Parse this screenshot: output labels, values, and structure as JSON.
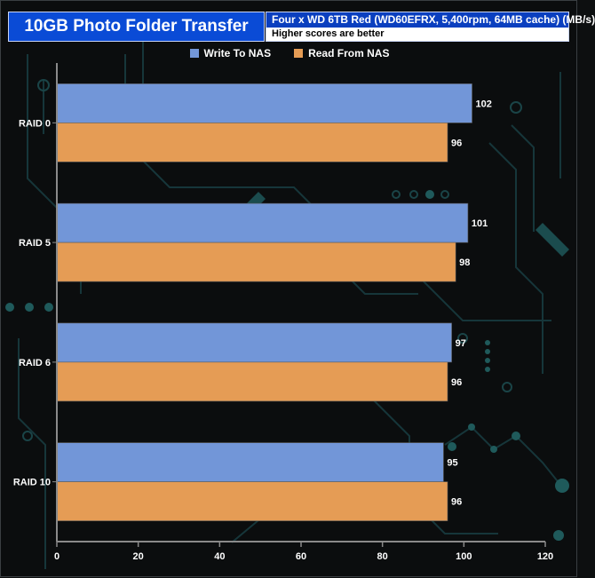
{
  "title": "10GB Photo Folder Transfer",
  "subtitle": "Four x WD 6TB Red (WD60EFRX, 5,400rpm, 64MB cache) (MB/s)",
  "note": "Higher scores are better",
  "chart_data": {
    "type": "bar",
    "orientation": "horizontal",
    "categories": [
      "RAID 0",
      "RAID 5",
      "RAID 6",
      "RAID 10"
    ],
    "series": [
      {
        "name": "Write To NAS",
        "color": "#7296d8",
        "values": [
          102,
          101,
          97,
          95
        ]
      },
      {
        "name": "Read From NAS",
        "color": "#e59c55",
        "values": [
          96,
          98,
          96,
          96
        ]
      }
    ],
    "xlim": [
      0,
      120
    ],
    "xticks": [
      0,
      20,
      40,
      60,
      80,
      100,
      120
    ],
    "data_labels": true,
    "legend_position": "top-center",
    "grid": false
  }
}
